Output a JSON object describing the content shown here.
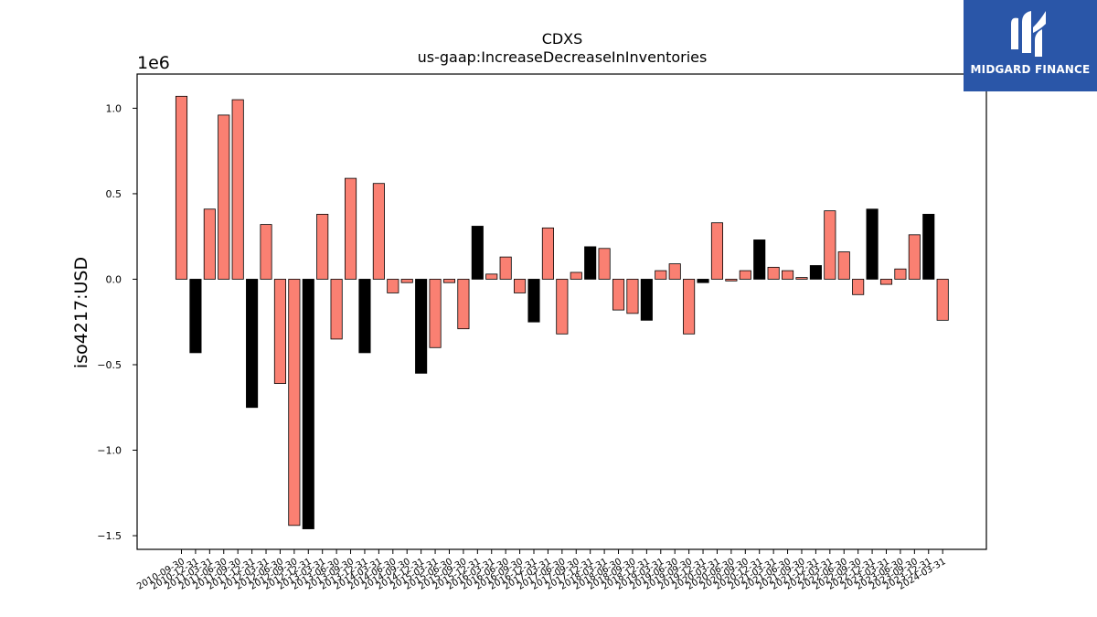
{
  "chart_data": {
    "type": "bar",
    "title": "CDXS",
    "subtitle": "us-gaap:IncreaseDecreaseInInventories",
    "ylabel": "iso4217:USD",
    "y_offset_label": "1e6",
    "ylim": [
      -1.58,
      1.2
    ],
    "yticks": [
      -1.5,
      -1.0,
      -0.5,
      0.0,
      0.5,
      1.0
    ],
    "ytick_labels": [
      "−1.5",
      "−1.0",
      "−0.5",
      "0.0",
      "0.5",
      "1.0"
    ],
    "grid": false,
    "colors": {
      "default": "#fa8072",
      "highlight": "#000000",
      "edge": "#000000"
    },
    "categories": [
      "2010-09-30",
      "2010-12-31",
      "2011-03-31",
      "2011-06-30",
      "2011-09-30",
      "2011-12-31",
      "2012-03-31",
      "2012-06-30",
      "2012-09-30",
      "2012-12-31",
      "2013-03-31",
      "2013-06-30",
      "2013-09-30",
      "2013-12-31",
      "2014-03-31",
      "2014-06-30",
      "2014-09-30",
      "2014-12-31",
      "2015-03-31",
      "2015-06-30",
      "2015-09-30",
      "2015-12-31",
      "2016-03-31",
      "2016-06-30",
      "2016-09-30",
      "2016-12-31",
      "2017-03-31",
      "2017-06-30",
      "2017-09-30",
      "2017-12-31",
      "2018-03-31",
      "2018-06-30",
      "2018-09-30",
      "2018-12-31",
      "2019-03-31",
      "2019-06-30",
      "2019-09-30",
      "2019-12-31",
      "2020-03-31",
      "2020-06-30",
      "2020-09-30",
      "2020-12-31",
      "2021-03-31",
      "2021-06-30",
      "2021-09-30",
      "2021-12-31",
      "2022-03-31",
      "2022-06-30",
      "2022-09-30",
      "2022-12-31",
      "2023-03-31",
      "2023-06-30",
      "2023-09-30",
      "2023-12-31",
      "2024-03-31"
    ],
    "values": [
      1.07,
      -0.43,
      0.41,
      0.96,
      1.05,
      -0.75,
      0.32,
      -0.61,
      -1.44,
      -1.46,
      0.38,
      -0.35,
      0.59,
      -0.43,
      0.56,
      -0.08,
      -0.02,
      -0.55,
      -0.4,
      -0.02,
      -0.29,
      0.31,
      0.03,
      0.13,
      -0.08,
      -0.25,
      0.3,
      -0.32,
      0.04,
      0.19,
      0.18,
      -0.18,
      -0.2,
      -0.24,
      0.05,
      0.09,
      -0.32,
      -0.02,
      0.33,
      -0.01,
      0.05,
      0.23,
      0.07,
      0.05,
      0.01,
      0.08,
      0.4,
      0.16,
      -0.09,
      0.41,
      -0.03,
      0.06,
      0.26,
      0.38,
      -0.24
    ],
    "highlight": [
      false,
      true,
      false,
      false,
      false,
      true,
      false,
      false,
      false,
      true,
      false,
      false,
      false,
      true,
      false,
      false,
      false,
      true,
      false,
      false,
      false,
      true,
      false,
      false,
      false,
      true,
      false,
      false,
      false,
      true,
      false,
      false,
      false,
      true,
      false,
      false,
      false,
      true,
      false,
      false,
      false,
      true,
      false,
      false,
      false,
      true,
      false,
      false,
      false,
      true,
      false,
      false,
      false,
      true,
      false
    ]
  },
  "logo": {
    "text": "MIDGARD FINANCE",
    "icon": "midgard-logo-icon"
  }
}
